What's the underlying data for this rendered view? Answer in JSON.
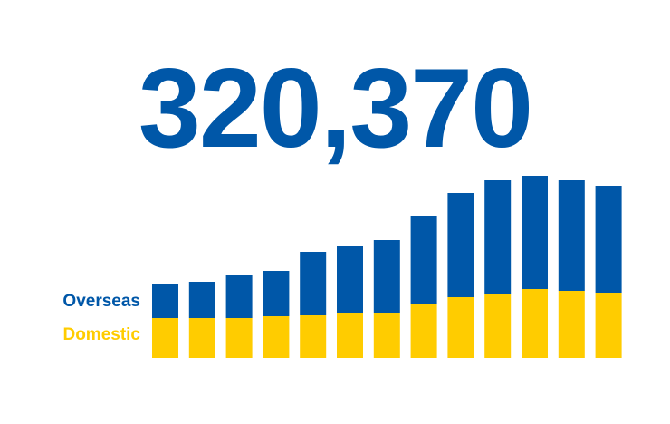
{
  "headline": "320,370",
  "colors": {
    "overseas": "#0057A8",
    "domestic": "#FFCC00"
  },
  "chart_data": {
    "type": "bar",
    "stacked": true,
    "categories": [
      "",
      "",
      "",
      "",
      "",
      "",
      "",
      "",
      "",
      "",
      "",
      "",
      ""
    ],
    "series": [
      {
        "name": "Domestic",
        "color": "#FFCC00",
        "values": [
          44,
          44,
          44,
          46,
          47,
          49,
          50,
          59,
          67,
          70,
          76,
          74,
          72
        ]
      },
      {
        "name": "Overseas",
        "color": "#0057A8",
        "values": [
          38,
          40,
          47,
          50,
          70,
          75,
          80,
          98,
          115,
          126,
          125,
          122,
          118
        ]
      }
    ],
    "ylim": [
      0,
      205
    ],
    "grid": false,
    "legend": "left"
  }
}
